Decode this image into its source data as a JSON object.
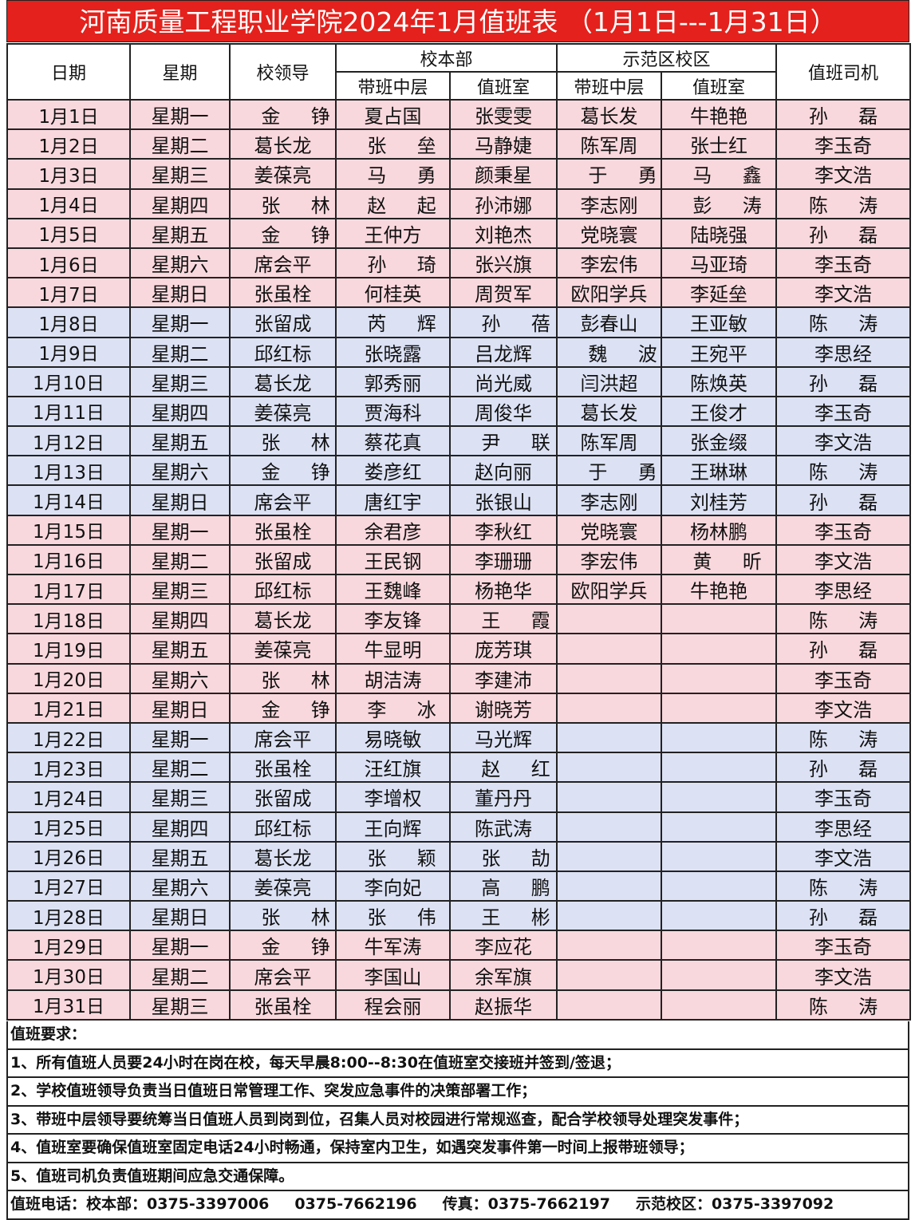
{
  "title": "河南质量工程职业学院2024年1月值班表 （1月1日---1月31日）",
  "header": {
    "date": "日期",
    "weekday": "星期",
    "leader": "校领导",
    "main_campus": "校本部",
    "demo_campus": "示范区校区",
    "mid_level": "带班中层",
    "duty_room": "值班室",
    "driver": "值班司机"
  },
  "colors": {
    "title_bg": "#e4211c",
    "pink_row": "#f9d8dd",
    "blue_row": "#dce2f4"
  },
  "rows": [
    {
      "date": "1月1日",
      "weekday": "星期一",
      "leader": "金铮",
      "main_mid": "夏占国",
      "main_room": "张雯雯",
      "demo_mid": "葛长发",
      "demo_room": "牛艳艳",
      "driver": "孙磊",
      "color": "pink"
    },
    {
      "date": "1月2日",
      "weekday": "星期二",
      "leader": "葛长龙",
      "main_mid": "张垒",
      "main_room": "马静婕",
      "demo_mid": "陈军周",
      "demo_room": "张士红",
      "driver": "李玉奇",
      "color": "pink"
    },
    {
      "date": "1月3日",
      "weekday": "星期三",
      "leader": "姜葆亮",
      "main_mid": "马勇",
      "main_room": "颜秉星",
      "demo_mid": "于勇",
      "demo_room": "马鑫",
      "driver": "李文浩",
      "color": "pink"
    },
    {
      "date": "1月4日",
      "weekday": "星期四",
      "leader": "张林",
      "main_mid": "赵起",
      "main_room": "孙沛娜",
      "demo_mid": "李志刚",
      "demo_room": "彭涛",
      "driver": "陈涛",
      "color": "pink"
    },
    {
      "date": "1月5日",
      "weekday": "星期五",
      "leader": "金铮",
      "main_mid": "王仲方",
      "main_room": "刘艳杰",
      "demo_mid": "党晓寰",
      "demo_room": "陆晓强",
      "driver": "孙磊",
      "color": "pink"
    },
    {
      "date": "1月6日",
      "weekday": "星期六",
      "leader": "席会平",
      "main_mid": "孙琦",
      "main_room": "张兴旗",
      "demo_mid": "李宏伟",
      "demo_room": "马亚琦",
      "driver": "李玉奇",
      "color": "pink"
    },
    {
      "date": "1月7日",
      "weekday": "星期日",
      "leader": "张虽栓",
      "main_mid": "何桂英",
      "main_room": "周贺军",
      "demo_mid": "欧阳学兵",
      "demo_room": "李延垒",
      "driver": "李文浩",
      "color": "pink"
    },
    {
      "date": "1月8日",
      "weekday": "星期一",
      "leader": "张留成",
      "main_mid": "芮辉",
      "main_room": "孙蓓",
      "demo_mid": "彭春山",
      "demo_room": "王亚敏",
      "driver": "陈涛",
      "color": "blue"
    },
    {
      "date": "1月9日",
      "weekday": "星期二",
      "leader": "邱红标",
      "main_mid": "张晓露",
      "main_room": "吕龙辉",
      "demo_mid": "魏波",
      "demo_room": "王宛平",
      "driver": "李思经",
      "color": "blue"
    },
    {
      "date": "1月10日",
      "weekday": "星期三",
      "leader": "葛长龙",
      "main_mid": "郭秀丽",
      "main_room": "尚光威",
      "demo_mid": "闫洪超",
      "demo_room": "陈焕英",
      "driver": "孙磊",
      "color": "blue"
    },
    {
      "date": "1月11日",
      "weekday": "星期四",
      "leader": "姜葆亮",
      "main_mid": "贾海科",
      "main_room": "周俊华",
      "demo_mid": "葛长发",
      "demo_room": "王俊才",
      "driver": "李玉奇",
      "color": "blue"
    },
    {
      "date": "1月12日",
      "weekday": "星期五",
      "leader": "张林",
      "main_mid": "蔡花真",
      "main_room": "尹联",
      "demo_mid": "陈军周",
      "demo_room": "张金缀",
      "driver": "李文浩",
      "color": "blue"
    },
    {
      "date": "1月13日",
      "weekday": "星期六",
      "leader": "金铮",
      "main_mid": "娄彦红",
      "main_room": "赵向丽",
      "demo_mid": "于勇",
      "demo_room": "王琳琳",
      "driver": "陈涛",
      "color": "blue"
    },
    {
      "date": "1月14日",
      "weekday": "星期日",
      "leader": "席会平",
      "main_mid": "唐红宇",
      "main_room": "张银山",
      "demo_mid": "李志刚",
      "demo_room": "刘桂芳",
      "driver": "孙磊",
      "color": "blue"
    },
    {
      "date": "1月15日",
      "weekday": "星期一",
      "leader": "张虽栓",
      "main_mid": "余君彦",
      "main_room": "李秋红",
      "demo_mid": "党晓寰",
      "demo_room": "杨林鹏",
      "driver": "李玉奇",
      "color": "pink"
    },
    {
      "date": "1月16日",
      "weekday": "星期二",
      "leader": "张留成",
      "main_mid": "王民钢",
      "main_room": "李珊珊",
      "demo_mid": "李宏伟",
      "demo_room": "黄昕",
      "driver": "李文浩",
      "color": "pink"
    },
    {
      "date": "1月17日",
      "weekday": "星期三",
      "leader": "邱红标",
      "main_mid": "王魏峰",
      "main_room": "杨艳华",
      "demo_mid": "欧阳学兵",
      "demo_room": "牛艳艳",
      "driver": "李思经",
      "color": "pink"
    },
    {
      "date": "1月18日",
      "weekday": "星期四",
      "leader": "葛长龙",
      "main_mid": "李友锋",
      "main_room": "王霞",
      "demo_mid": "",
      "demo_room": "",
      "driver": "陈涛",
      "color": "pink"
    },
    {
      "date": "1月19日",
      "weekday": "星期五",
      "leader": "姜葆亮",
      "main_mid": "牛显明",
      "main_room": "庞芳琪",
      "demo_mid": "",
      "demo_room": "",
      "driver": "孙磊",
      "color": "pink"
    },
    {
      "date": "1月20日",
      "weekday": "星期六",
      "leader": "张林",
      "main_mid": "胡洁涛",
      "main_room": "李建沛",
      "demo_mid": "",
      "demo_room": "",
      "driver": "李玉奇",
      "color": "pink"
    },
    {
      "date": "1月21日",
      "weekday": "星期日",
      "leader": "金铮",
      "main_mid": "李冰",
      "main_room": "谢晓芳",
      "demo_mid": "",
      "demo_room": "",
      "driver": "李文浩",
      "color": "pink"
    },
    {
      "date": "1月22日",
      "weekday": "星期一",
      "leader": "席会平",
      "main_mid": "易晓敏",
      "main_room": "马光辉",
      "demo_mid": "",
      "demo_room": "",
      "driver": "陈涛",
      "color": "blue"
    },
    {
      "date": "1月23日",
      "weekday": "星期二",
      "leader": "张虽栓",
      "main_mid": "汪红旗",
      "main_room": "赵红",
      "demo_mid": "",
      "demo_room": "",
      "driver": "孙磊",
      "color": "blue"
    },
    {
      "date": "1月24日",
      "weekday": "星期三",
      "leader": "张留成",
      "main_mid": "李增权",
      "main_room": "董丹丹",
      "demo_mid": "",
      "demo_room": "",
      "driver": "李玉奇",
      "color": "blue"
    },
    {
      "date": "1月25日",
      "weekday": "星期四",
      "leader": "邱红标",
      "main_mid": "王向辉",
      "main_room": "陈武涛",
      "demo_mid": "",
      "demo_room": "",
      "driver": "李思经",
      "color": "blue"
    },
    {
      "date": "1月26日",
      "weekday": "星期五",
      "leader": "葛长龙",
      "main_mid": "张颖",
      "main_room": "张劼",
      "demo_mid": "",
      "demo_room": "",
      "driver": "李文浩",
      "color": "blue"
    },
    {
      "date": "1月27日",
      "weekday": "星期六",
      "leader": "姜葆亮",
      "main_mid": "李向妃",
      "main_room": "高鹏",
      "demo_mid": "",
      "demo_room": "",
      "driver": "陈涛",
      "color": "blue"
    },
    {
      "date": "1月28日",
      "weekday": "星期日",
      "leader": "张林",
      "main_mid": "张伟",
      "main_room": "王彬",
      "demo_mid": "",
      "demo_room": "",
      "driver": "孙磊",
      "color": "blue"
    },
    {
      "date": "1月29日",
      "weekday": "星期一",
      "leader": "金铮",
      "main_mid": "牛军涛",
      "main_room": "李应花",
      "demo_mid": "",
      "demo_room": "",
      "driver": "李玉奇",
      "color": "pink"
    },
    {
      "date": "1月30日",
      "weekday": "星期二",
      "leader": "席会平",
      "main_mid": "李国山",
      "main_room": "余军旗",
      "demo_mid": "",
      "demo_room": "",
      "driver": "李文浩",
      "color": "pink"
    },
    {
      "date": "1月31日",
      "weekday": "星期三",
      "leader": "张虽栓",
      "main_mid": "程会丽",
      "main_room": "赵振华",
      "demo_mid": "",
      "demo_room": "",
      "driver": "陈涛",
      "color": "pink"
    }
  ],
  "notes": {
    "heading": "值班要求：",
    "items": [
      "1、所有值班人员要24小时在岗在校，每天早晨8:00--8:30在值班室交接班并签到/签退；",
      "2、学校值班领导负责当日值班日常管理工作、突发应急事件的决策部署工作；",
      "3、带班中层领导要统筹当日值班人员到岗到位，召集人员对校园进行常规巡查，配合学校领导处理突发事件；",
      "4、值班室要确保值班室固定电话24小时畅通，保持室内卫生，如遇突发事件第一时间上报带班领导；",
      "5、值班司机负责值班期间应急交通保障。"
    ],
    "phone": {
      "label": "值班电话：校本部：0375-3397006",
      "second": "0375-7662196",
      "fax": "传真：0375-7662197",
      "demo": "示范校区：0375-3397092"
    }
  }
}
